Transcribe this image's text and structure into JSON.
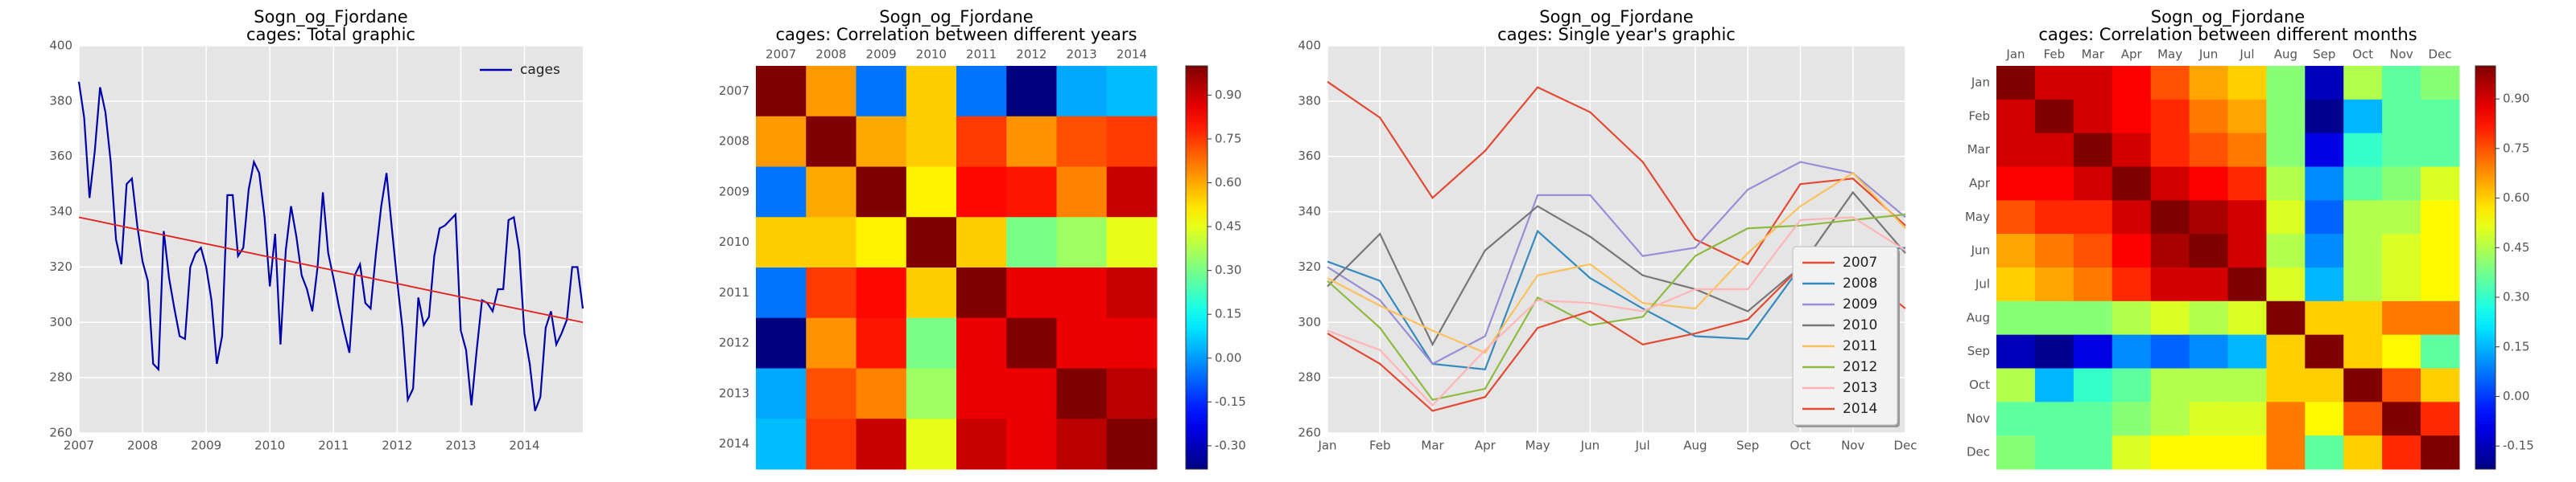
{
  "chart_data": [
    {
      "type": "line",
      "title": "Sogn_og_Fjordane",
      "subtitle": "cages: Total graphic",
      "x": [
        2007,
        2007.083,
        2007.167,
        2007.25,
        2007.333,
        2007.417,
        2007.5,
        2007.583,
        2007.667,
        2007.75,
        2007.833,
        2007.917,
        2008,
        2008.083,
        2008.167,
        2008.25,
        2008.333,
        2008.417,
        2008.5,
        2008.583,
        2008.667,
        2008.75,
        2008.833,
        2008.917,
        2009,
        2009.083,
        2009.167,
        2009.25,
        2009.333,
        2009.417,
        2009.5,
        2009.583,
        2009.667,
        2009.75,
        2009.833,
        2009.917,
        2010,
        2010.083,
        2010.167,
        2010.25,
        2010.333,
        2010.417,
        2010.5,
        2010.583,
        2010.667,
        2010.75,
        2010.833,
        2010.917,
        2011,
        2011.083,
        2011.167,
        2011.25,
        2011.333,
        2011.417,
        2011.5,
        2011.583,
        2011.667,
        2011.75,
        2011.833,
        2011.917,
        2012,
        2012.083,
        2012.167,
        2012.25,
        2012.333,
        2012.417,
        2012.5,
        2012.583,
        2012.667,
        2012.75,
        2012.833,
        2012.917,
        2013,
        2013.083,
        2013.167,
        2013.25,
        2013.333,
        2013.417,
        2013.5,
        2013.583,
        2013.667,
        2013.75,
        2013.833,
        2013.917,
        2014,
        2014.083,
        2014.167,
        2014.25,
        2014.333,
        2014.417,
        2014.5,
        2014.583,
        2014.667,
        2014.75,
        2014.833,
        2014.917
      ],
      "series": [
        {
          "name": "cages",
          "color": "#0000aa",
          "values": [
            387,
            374,
            345,
            362,
            385,
            376,
            358,
            330,
            321,
            350,
            352,
            335,
            322,
            315,
            285,
            283,
            333,
            316,
            305,
            295,
            294,
            320,
            325,
            327,
            320,
            308,
            285,
            295,
            346,
            346,
            324,
            327,
            348,
            358,
            354,
            338,
            313,
            332,
            292,
            326,
            342,
            331,
            317,
            312,
            304,
            320,
            347,
            325,
            316,
            306,
            297,
            289,
            317,
            321,
            307,
            305,
            325,
            342,
            354,
            334,
            315,
            298,
            272,
            276,
            309,
            299,
            302,
            324,
            334,
            335,
            337,
            339,
            297,
            290,
            270,
            290,
            308,
            307,
            304,
            312,
            312,
            337,
            338,
            326,
            296,
            285,
            268,
            273,
            298,
            304,
            292,
            296,
            301,
            320,
            320,
            305
          ]
        }
      ],
      "trend": {
        "color": "#e2211c",
        "x": [
          2007,
          2014.917
        ],
        "values": [
          338,
          300
        ]
      },
      "xlim": [
        2007,
        2014.917
      ],
      "xticks": [
        2007,
        2008,
        2009,
        2010,
        2011,
        2012,
        2013,
        2014
      ],
      "ylim": [
        260,
        400
      ],
      "yticks": [
        260,
        280,
        300,
        320,
        340,
        360,
        380,
        400
      ],
      "grid": true,
      "background": "#e5e5e5",
      "legend": "upper right",
      "legend_frame": false
    },
    {
      "type": "heatmap",
      "title": "Sogn_og_Fjordane",
      "subtitle": "cages: Correlation between different years",
      "categories": [
        "2007",
        "2008",
        "2009",
        "2010",
        "2011",
        "2012",
        "2013",
        "2014"
      ],
      "matrix": [
        [
          1,
          0.62,
          -0.05,
          0.55,
          -0.05,
          -0.38,
          0.02,
          0.05
        ],
        [
          0.62,
          1,
          0.6,
          0.55,
          0.75,
          0.63,
          0.72,
          0.75
        ],
        [
          -0.05,
          0.6,
          1,
          0.5,
          0.82,
          0.8,
          0.65,
          0.9
        ],
        [
          0.55,
          0.55,
          0.5,
          1,
          0.55,
          0.3,
          0.35,
          0.45
        ],
        [
          -0.05,
          0.75,
          0.82,
          0.55,
          1,
          0.85,
          0.85,
          0.9
        ],
        [
          -0.38,
          0.63,
          0.8,
          0.3,
          0.85,
          1,
          0.85,
          0.85
        ],
        [
          0.02,
          0.72,
          0.65,
          0.35,
          0.85,
          0.85,
          1,
          0.92
        ],
        [
          0.05,
          0.75,
          0.9,
          0.45,
          0.9,
          0.85,
          0.92,
          1
        ]
      ],
      "colormap": "jet",
      "clim": [
        -0.38,
        1
      ],
      "cticks": [
        {
          "value": -0.3,
          "label": "-0.30"
        },
        {
          "value": -0.15,
          "label": "-0.15"
        },
        {
          "value": 0,
          "label": "0.00"
        },
        {
          "value": 0.15,
          "label": "0.15"
        },
        {
          "value": 0.3,
          "label": "0.30"
        },
        {
          "value": 0.45,
          "label": "0.45"
        },
        {
          "value": 0.6,
          "label": "0.60"
        },
        {
          "value": 0.75,
          "label": "0.75"
        },
        {
          "value": 0.9,
          "label": "0.90"
        }
      ]
    },
    {
      "type": "line",
      "title": "Sogn_og_Fjordane",
      "subtitle": "cages: Single year's graphic",
      "categories": [
        "Jan",
        "Feb",
        "Mar",
        "Apr",
        "May",
        "Jun",
        "Jul",
        "Aug",
        "Sep",
        "Oct",
        "Nov",
        "Dec"
      ],
      "series": [
        {
          "name": "2007",
          "color": "#e24a33",
          "values": [
            387,
            374,
            345,
            362,
            385,
            376,
            358,
            330,
            321,
            350,
            352,
            335
          ]
        },
        {
          "name": "2008",
          "color": "#348abd",
          "values": [
            322,
            315,
            285,
            283,
            333,
            316,
            305,
            295,
            294,
            320,
            325,
            327
          ]
        },
        {
          "name": "2009",
          "color": "#988ed5",
          "values": [
            320,
            308,
            285,
            295,
            346,
            346,
            324,
            327,
            348,
            358,
            354,
            338
          ]
        },
        {
          "name": "2010",
          "color": "#777777",
          "values": [
            313,
            332,
            292,
            326,
            342,
            331,
            317,
            312,
            304,
            320,
            347,
            325
          ]
        },
        {
          "name": "2011",
          "color": "#fbc15e",
          "values": [
            316,
            306,
            297,
            289,
            317,
            321,
            307,
            305,
            325,
            342,
            354,
            334
          ]
        },
        {
          "name": "2012",
          "color": "#8eba42",
          "values": [
            315,
            298,
            272,
            276,
            309,
            299,
            302,
            324,
            334,
            335,
            337,
            339
          ]
        },
        {
          "name": "2013",
          "color": "#ffb5b8",
          "values": [
            297,
            290,
            270,
            290,
            308,
            307,
            304,
            312,
            312,
            337,
            338,
            326
          ]
        },
        {
          "name": "2014",
          "color": "#e24a33",
          "values": [
            296,
            285,
            268,
            273,
            298,
            304,
            292,
            296,
            301,
            320,
            320,
            305
          ]
        }
      ],
      "ylim": [
        260,
        400
      ],
      "yticks": [
        260,
        280,
        300,
        320,
        340,
        360,
        380,
        400
      ],
      "grid": true,
      "background": "#e5e5e5",
      "legend": "lower right",
      "legend_frame": true
    },
    {
      "type": "heatmap",
      "title": "Sogn_og_Fjordane",
      "subtitle": "cages: Correlation between different months",
      "categories": [
        "Jan",
        "Feb",
        "Mar",
        "Apr",
        "May",
        "Jun",
        "Jul",
        "Aug",
        "Sep",
        "Oct",
        "Nov",
        "Dec"
      ],
      "matrix": [
        [
          1,
          0.9,
          0.9,
          0.85,
          0.75,
          0.65,
          0.6,
          0.4,
          -0.15,
          0.45,
          0.35,
          0.4
        ],
        [
          0.9,
          1,
          0.9,
          0.85,
          0.8,
          0.7,
          0.65,
          0.4,
          -0.2,
          0.15,
          0.35,
          0.35
        ],
        [
          0.9,
          0.9,
          1,
          0.9,
          0.8,
          0.75,
          0.7,
          0.4,
          -0.1,
          0.3,
          0.35,
          0.35
        ],
        [
          0.85,
          0.85,
          0.9,
          1,
          0.9,
          0.85,
          0.8,
          0.45,
          0.1,
          0.35,
          0.4,
          0.5
        ],
        [
          0.75,
          0.8,
          0.8,
          0.9,
          1,
          0.95,
          0.9,
          0.5,
          0.05,
          0.45,
          0.45,
          0.55
        ],
        [
          0.65,
          0.7,
          0.75,
          0.85,
          0.95,
          1,
          0.9,
          0.45,
          0.1,
          0.45,
          0.5,
          0.55
        ],
        [
          0.6,
          0.65,
          0.7,
          0.8,
          0.9,
          0.9,
          1,
          0.5,
          0.15,
          0.45,
          0.5,
          0.55
        ],
        [
          0.4,
          0.4,
          0.4,
          0.45,
          0.5,
          0.45,
          0.5,
          1,
          0.6,
          0.6,
          0.7,
          0.7
        ],
        [
          -0.15,
          -0.2,
          -0.1,
          0.1,
          0.05,
          0.1,
          0.15,
          0.6,
          1,
          0.6,
          0.55,
          0.35
        ],
        [
          0.45,
          0.15,
          0.3,
          0.35,
          0.45,
          0.45,
          0.45,
          0.6,
          0.6,
          1,
          0.75,
          0.6
        ],
        [
          0.35,
          0.35,
          0.35,
          0.4,
          0.45,
          0.5,
          0.5,
          0.7,
          0.55,
          0.75,
          1,
          0.8
        ],
        [
          0.4,
          0.35,
          0.35,
          0.5,
          0.55,
          0.55,
          0.55,
          0.7,
          0.35,
          0.6,
          0.8,
          1
        ]
      ],
      "colormap": "jet",
      "clim": [
        -0.22,
        1
      ],
      "cticks": [
        {
          "value": -0.15,
          "label": "-0.15"
        },
        {
          "value": 0,
          "label": "0.00"
        },
        {
          "value": 0.15,
          "label": "0.15"
        },
        {
          "value": 0.3,
          "label": "0.30"
        },
        {
          "value": 0.45,
          "label": "0.45"
        },
        {
          "value": 0.6,
          "label": "0.60"
        },
        {
          "value": 0.75,
          "label": "0.75"
        },
        {
          "value": 0.9,
          "label": "0.90"
        }
      ]
    }
  ]
}
